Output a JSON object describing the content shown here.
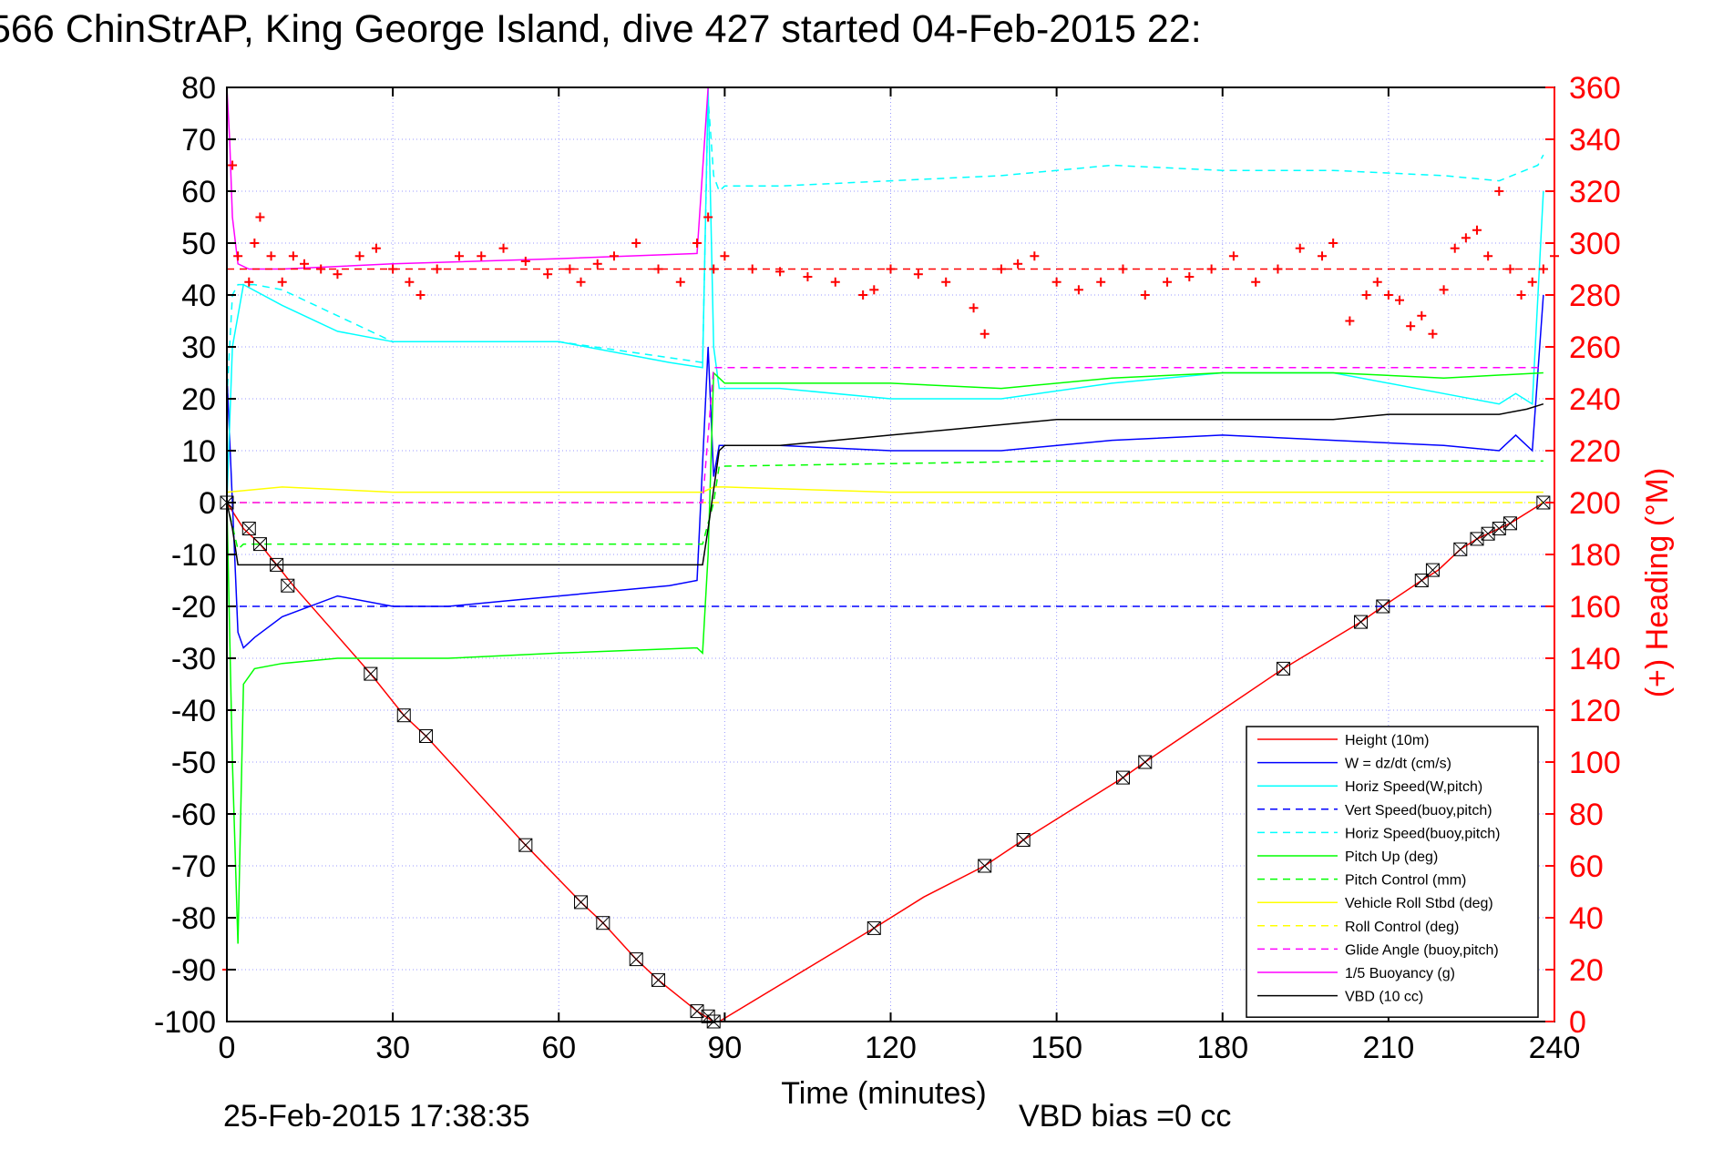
{
  "chart_data": {
    "type": "line",
    "title": "566 ChinStrAP, King George Island, dive 427 started 04-Feb-2015 22:",
    "xlabel": "Time (minutes)",
    "ylabel": "",
    "y2label": "(+) Heading (°M)",
    "xlim": [
      0,
      240
    ],
    "ylim": [
      -100,
      80
    ],
    "y2lim": [
      0,
      360
    ],
    "x_ticks": [
      "0",
      "30",
      "60",
      "90",
      "120",
      "150",
      "180",
      "210",
      "240"
    ],
    "y_ticks": [
      "80",
      "70",
      "60",
      "50",
      "40",
      "30",
      "20",
      "10",
      "0",
      "-10",
      "-20",
      "-30",
      "-40",
      "-50",
      "-60",
      "-70",
      "-80",
      "-90",
      "-100"
    ],
    "y2_ticks": [
      "360",
      "340",
      "320",
      "300",
      "280",
      "260",
      "240",
      "220",
      "200",
      "180",
      "160",
      "140",
      "120",
      "100",
      "80",
      "60",
      "40",
      "20",
      "0"
    ],
    "footer_left": "25-Feb-2015 17:38:35",
    "footer_right": "VBD bias =0 cc",
    "grid": true,
    "legend_position": "bottom-right",
    "series": [
      {
        "name": "Height (10m)",
        "color": "#ff0000",
        "style": "solid",
        "x": [
          0,
          3,
          6,
          9,
          12,
          26,
          32,
          36,
          54,
          64,
          68,
          74,
          78,
          85,
          88,
          89,
          117,
          126,
          137,
          144,
          162,
          166,
          191,
          205,
          209,
          216,
          219,
          223,
          226,
          228,
          230,
          232,
          238
        ],
        "y": [
          0,
          -5,
          -8,
          -12,
          -16,
          -33,
          -41,
          -45,
          -66,
          -77,
          -81,
          -88,
          -92,
          -98,
          -100,
          -100,
          -82,
          -76,
          -70,
          -65,
          -53,
          -50,
          -32,
          -23,
          -20,
          -15,
          -13,
          -9,
          -7,
          -6,
          -5,
          -4,
          0
        ]
      },
      {
        "name": "W = dz/dt (cm/s)",
        "color": "#0000ff",
        "style": "solid",
        "x": [
          0,
          1,
          2,
          3,
          5,
          10,
          20,
          30,
          40,
          50,
          60,
          70,
          80,
          85,
          87,
          88,
          89,
          90,
          100,
          120,
          140,
          160,
          180,
          200,
          220,
          230,
          233,
          236,
          238
        ],
        "y": [
          25,
          0,
          -25,
          -28,
          -26,
          -22,
          -18,
          -20,
          -20,
          -19,
          -18,
          -17,
          -16,
          -15,
          30,
          5,
          11,
          11,
          11,
          10,
          10,
          12,
          13,
          12,
          11,
          10,
          13,
          10,
          40
        ]
      },
      {
        "name": "Horiz Speed(W,pitch)",
        "color": "#00ffff",
        "style": "solid",
        "x": [
          0,
          1,
          3,
          10,
          20,
          30,
          40,
          60,
          80,
          86,
          87,
          88,
          89,
          90,
          100,
          120,
          140,
          160,
          180,
          200,
          220,
          230,
          233,
          236,
          238
        ],
        "y": [
          0,
          30,
          42,
          38,
          33,
          31,
          31,
          31,
          27,
          26,
          80,
          30,
          22,
          22,
          22,
          20,
          20,
          23,
          25,
          25,
          21,
          19,
          21,
          19,
          60
        ]
      },
      {
        "name": "Vert Speed(buoy,pitch)",
        "color": "#0000ff",
        "style": "dashed",
        "x": [
          0,
          240
        ],
        "y": [
          -20,
          -20
        ]
      },
      {
        "name": "Horiz Speed(buoy,pitch)",
        "color": "#00ffff",
        "style": "dashed",
        "x": [
          0,
          1,
          2,
          5,
          10,
          30,
          60,
          86,
          87,
          88,
          89,
          90,
          100,
          120,
          140,
          160,
          180,
          200,
          220,
          230,
          237,
          238
        ],
        "y": [
          20,
          40,
          42,
          42,
          41,
          31,
          31,
          27,
          78,
          63,
          60,
          61,
          61,
          62,
          63,
          65,
          64,
          64,
          63,
          62,
          65,
          67
        ]
      },
      {
        "name": "Pitch Up (deg)",
        "color": "#00ff00",
        "style": "solid",
        "x": [
          0,
          1,
          2,
          3,
          5,
          10,
          20,
          40,
          60,
          85,
          86,
          87,
          88,
          89,
          90,
          120,
          140,
          160,
          180,
          200,
          220,
          238
        ],
        "y": [
          0,
          -50,
          -85,
          -35,
          -32,
          -31,
          -30,
          -30,
          -29,
          -28,
          -29,
          -10,
          25,
          24,
          23,
          23,
          22,
          24,
          25,
          25,
          24,
          25
        ]
      },
      {
        "name": "Pitch Control (mm)",
        "color": "#00ff00",
        "style": "dashed",
        "x": [
          0,
          2,
          3,
          86,
          88,
          89,
          150,
          200,
          238
        ],
        "y": [
          0,
          -9,
          -8,
          -8,
          0,
          7,
          8,
          8,
          8
        ]
      },
      {
        "name": "Vehicle Roll Stbd (deg)",
        "color": "#ffff00",
        "style": "solid",
        "x": [
          0,
          10,
          30,
          60,
          86,
          88,
          90,
          120,
          150,
          180,
          210,
          238
        ],
        "y": [
          2,
          3,
          2,
          2,
          2,
          3,
          3,
          2,
          2,
          2,
          2,
          2
        ]
      },
      {
        "name": "Roll Control (deg)",
        "color": "#ffff00",
        "style": "dashed",
        "x": [
          0,
          86,
          88,
          238
        ],
        "y": [
          0,
          0,
          0,
          0
        ]
      },
      {
        "name": "Glide Angle (buoy,pitch)",
        "color": "#ff00ff",
        "style": "dashed",
        "x": [
          0,
          86,
          88,
          89,
          238
        ],
        "y": [
          0,
          0,
          26,
          26,
          26
        ]
      },
      {
        "name": "1/5 Buoyancy (g)",
        "color": "#ff00ff",
        "style": "solid",
        "x": [
          0,
          0.5,
          1,
          2,
          4,
          10,
          30,
          60,
          85,
          87
        ],
        "y": [
          80,
          70,
          55,
          46,
          45,
          45,
          46,
          47,
          48,
          80
        ]
      },
      {
        "name": "VBD (10 cc)",
        "color": "#000000",
        "style": "solid",
        "x": [
          0,
          1,
          2,
          86,
          87,
          89,
          90,
          100,
          110,
          120,
          130,
          140,
          150,
          160,
          170,
          180,
          190,
          200,
          210,
          220,
          230,
          235,
          238
        ],
        "y": [
          0,
          -5,
          -12,
          -12,
          -5,
          10,
          11,
          11,
          12,
          13,
          14,
          15,
          16,
          16,
          16,
          16,
          16,
          16,
          17,
          17,
          17,
          18,
          19
        ]
      }
    ],
    "heading": {
      "name": "Heading",
      "color": "#ff0000",
      "marker": "+",
      "axis": "right",
      "mean": 290,
      "x": [
        0,
        1,
        2,
        4,
        5,
        6,
        8,
        10,
        12,
        14,
        17,
        20,
        24,
        27,
        30,
        33,
        35,
        38,
        42,
        46,
        50,
        54,
        58,
        62,
        64,
        67,
        70,
        74,
        78,
        82,
        85,
        87,
        88,
        90,
        95,
        100,
        105,
        110,
        115,
        117,
        120,
        125,
        130,
        135,
        137,
        140,
        143,
        146,
        150,
        154,
        158,
        162,
        166,
        170,
        174,
        178,
        182,
        186,
        190,
        194,
        198,
        200,
        203,
        206,
        208,
        210,
        212,
        214,
        216,
        218,
        220,
        222,
        224,
        226,
        228,
        230,
        232,
        234,
        236,
        238,
        240
      ],
      "y": [
        20,
        330,
        295,
        285,
        300,
        310,
        295,
        285,
        295,
        292,
        290,
        288,
        295,
        298,
        290,
        285,
        280,
        290,
        295,
        295,
        298,
        293,
        288,
        290,
        285,
        292,
        295,
        300,
        290,
        285,
        300,
        310,
        290,
        295,
        290,
        289,
        287,
        285,
        280,
        282,
        290,
        288,
        285,
        275,
        265,
        290,
        292,
        295,
        285,
        282,
        285,
        290,
        280,
        285,
        287,
        290,
        295,
        285,
        290,
        298,
        295,
        300,
        270,
        280,
        285,
        280,
        278,
        268,
        272,
        265,
        282,
        298,
        302,
        305,
        295,
        320,
        290,
        280,
        285,
        290,
        295
      ]
    },
    "markers": {
      "name": "Height samples",
      "color": "#000000",
      "marker": "box-x",
      "x": [
        0,
        4,
        6,
        9,
        11,
        26,
        32,
        36,
        54,
        64,
        68,
        74,
        78,
        85,
        87,
        88,
        117,
        137,
        144,
        162,
        166,
        191,
        205,
        209,
        216,
        218,
        223,
        226,
        228,
        230,
        232,
        238
      ],
      "y": [
        0,
        -5,
        -8,
        -12,
        -16,
        -33,
        -41,
        -45,
        -66,
        -77,
        -81,
        -88,
        -92,
        -98,
        -99,
        -100,
        -82,
        -70,
        -65,
        -53,
        -50,
        -32,
        -23,
        -20,
        -15,
        -13,
        -9,
        -7,
        -6,
        -5,
        -4,
        0
      ]
    }
  }
}
